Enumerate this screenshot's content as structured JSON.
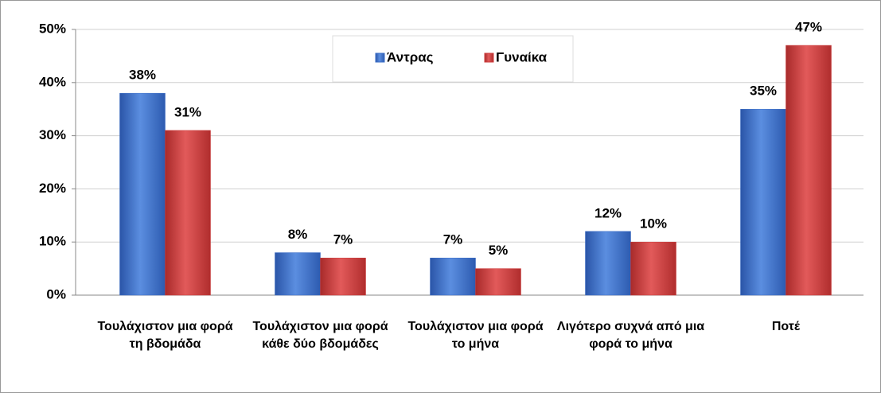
{
  "chart_data": {
    "type": "bar",
    "categories": [
      "Τουλάχιστον μια φορά τη βδομάδα",
      "Τουλάχιστον μια φορά κάθε δύο βδομάδες",
      "Τουλάχιστον μια φορά το μήνα",
      "Λιγότερο συχνά από μια φορά το μήνα",
      "Ποτέ"
    ],
    "series": [
      {
        "name": "Άντρας",
        "color": "#3a6cc6",
        "values": [
          38,
          8,
          7,
          12,
          35
        ],
        "value_labels": [
          "38%",
          "8%",
          "7%",
          "12%",
          "35%"
        ]
      },
      {
        "name": "Γυναίκα",
        "color": "#cc3b3b",
        "values": [
          31,
          7,
          5,
          10,
          47
        ],
        "value_labels": [
          "31%",
          "7%",
          "5%",
          "10%",
          "47%"
        ]
      }
    ],
    "ylim": [
      0,
      50
    ],
    "yticks": [
      {
        "value": 0,
        "label": "0%"
      },
      {
        "value": 10,
        "label": "10%"
      },
      {
        "value": 20,
        "label": "20%"
      },
      {
        "value": 30,
        "label": "30%"
      },
      {
        "value": 40,
        "label": "40%"
      },
      {
        "value": 50,
        "label": "50%"
      }
    ],
    "grid": true,
    "legend": "top"
  }
}
